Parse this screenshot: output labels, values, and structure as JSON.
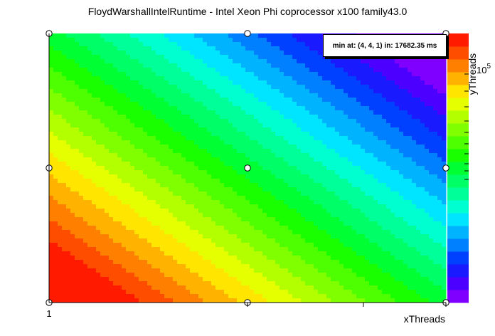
{
  "chart_data": {
    "type": "heatmap",
    "title": "FloydWarshallIntelRuntime - Intel Xeon Phi coprocessor x100 family43.0",
    "xlabel": "xThreads",
    "ylabel": "yThreads",
    "x_ticks": [
      "1"
    ],
    "colorbar_ticks": [
      "10^5"
    ],
    "colorbar_tick_base": "10",
    "colorbar_tick_exp": "5",
    "annotation": "min at: (4, 4, 1) in: 17682.35 ms",
    "grid": "x",
    "value_range_ms": [
      17682.35,
      300000
    ],
    "palette": [
      "#7f00ff",
      "#4c00ff",
      "#1a1aff",
      "#0040ff",
      "#0080ff",
      "#00b3ff",
      "#00e5ff",
      "#00ffd0",
      "#00ff99",
      "#00ff66",
      "#00ff33",
      "#1aff00",
      "#4dff00",
      "#80ff00",
      "#b3ff00",
      "#e5ff00",
      "#ffe500",
      "#ffb300",
      "#ff8000",
      "#ff4d00",
      "#ff1a00"
    ],
    "control_points": [
      {
        "x": 0,
        "y": 0,
        "label": "low"
      },
      {
        "x": 0.5,
        "y": 0,
        "label": "mid-bottom"
      },
      {
        "x": 1,
        "y": 0,
        "label": "high-bottom"
      },
      {
        "x": 0,
        "y": 0.5,
        "label": "mid-left"
      },
      {
        "x": 0.5,
        "y": 0.5,
        "label": "center"
      },
      {
        "x": 1,
        "y": 0.5,
        "label": "mid-right"
      },
      {
        "x": 0,
        "y": 1,
        "label": "left-top"
      },
      {
        "x": 0.5,
        "y": 1,
        "label": "mid-top"
      },
      {
        "x": 1,
        "y": 1,
        "label": "right-top"
      }
    ]
  }
}
